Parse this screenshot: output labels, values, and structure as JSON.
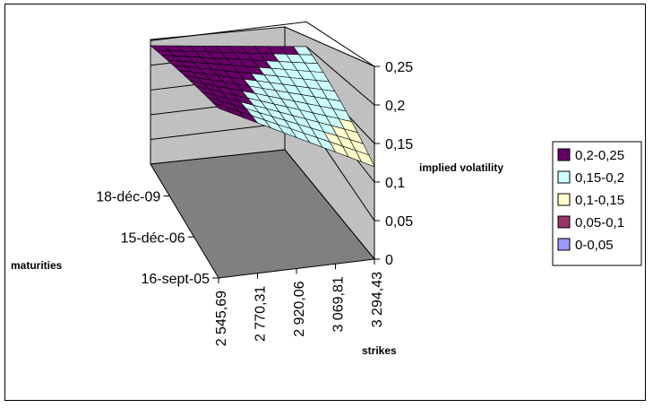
{
  "chart_data": {
    "type": "surface3d",
    "zlabel": "implied volatility",
    "xlabel": "strikes",
    "ylabel": "maturities",
    "zlim": [
      0,
      0.25
    ],
    "z_ticks": [
      "0",
      "0,05",
      "0,1",
      "0,15",
      "0,2",
      "0,25"
    ],
    "strike_ticks": [
      "2 545,69",
      "2 770,31",
      "2 920,06",
      "3 069,81",
      "3 294,43"
    ],
    "maturity_ticks": [
      "16-sept-05",
      "15-déc-06",
      "18-déc-09"
    ],
    "legend_position": "right",
    "legend": [
      {
        "label": "0,2-0,25",
        "color": "#660066"
      },
      {
        "label": "0,15-0,2",
        "color": "#ccffff"
      },
      {
        "label": "0,1-0,15",
        "color": "#ffffcc"
      },
      {
        "label": "0,05-0,1",
        "color": "#993366"
      },
      {
        "label": "0-0,05",
        "color": "#9999ff"
      }
    ],
    "surface_corners": {
      "low_strike_long_maturity": 0.24,
      "high_strike_long_maturity": 0.2,
      "low_strike_short_maturity": 0.22,
      "high_strike_short_maturity": 0.12
    }
  }
}
